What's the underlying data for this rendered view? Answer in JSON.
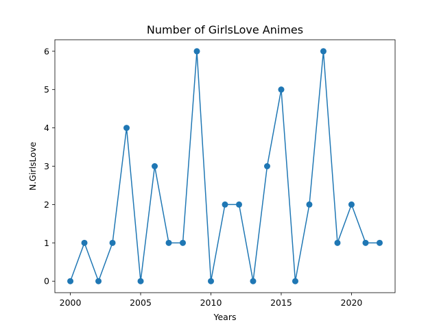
{
  "chart_data": {
    "type": "line",
    "title": "Number of GirlsLove Animes",
    "xlabel": "Years",
    "ylabel": "N.GirlsLove",
    "x": [
      2000,
      2001,
      2002,
      2003,
      2004,
      2005,
      2006,
      2007,
      2008,
      2009,
      2010,
      2011,
      2012,
      2013,
      2014,
      2015,
      2016,
      2017,
      2018,
      2019,
      2020,
      2021,
      2022
    ],
    "y": [
      0,
      1,
      0,
      1,
      4,
      0,
      3,
      1,
      1,
      6,
      0,
      2,
      2,
      0,
      3,
      5,
      0,
      2,
      6,
      1,
      2,
      1,
      1
    ],
    "xlim": [
      1998.9,
      2023.1
    ],
    "ylim": [
      -0.3,
      6.3
    ],
    "xticks": [
      2000,
      2005,
      2010,
      2015,
      2020
    ],
    "yticks": [
      0,
      1,
      2,
      3,
      4,
      5,
      6
    ],
    "grid": false,
    "color": "#1f77b4"
  }
}
